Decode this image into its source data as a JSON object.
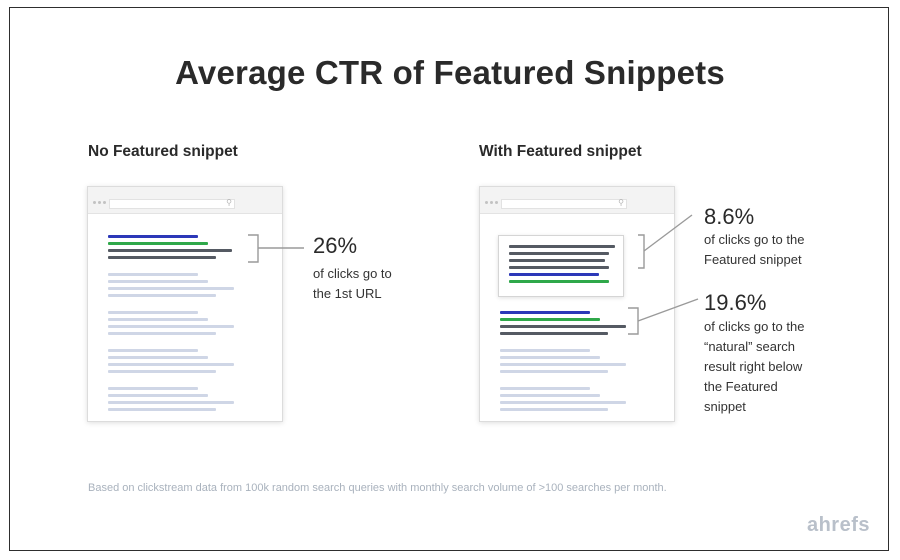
{
  "title": "Average CTR of Featured Snippets",
  "panels": [
    {
      "heading": "No Featured snippet",
      "stats": [
        {
          "value": "26%",
          "lines": [
            "of clicks go to",
            "the 1st URL"
          ]
        }
      ]
    },
    {
      "heading": "With Featured snippet",
      "stats": [
        {
          "value": "8.6%",
          "lines": [
            "of clicks go to the",
            "Featured snippet"
          ]
        },
        {
          "value": "19.6%",
          "lines": [
            "of clicks go to the",
            "“natural” search",
            "result right below",
            "the Featured",
            "snippet"
          ]
        }
      ]
    }
  ],
  "footnote": "Based on clickstream data from 100k random search queries with monthly search volume of >100 searches per month.",
  "logo": "ahrefs",
  "colors": {
    "blue": "#2c38b8",
    "green": "#2fa84a",
    "gray": "#555a63",
    "light": "#cfd6e6",
    "brace": "#9a9a9a"
  }
}
